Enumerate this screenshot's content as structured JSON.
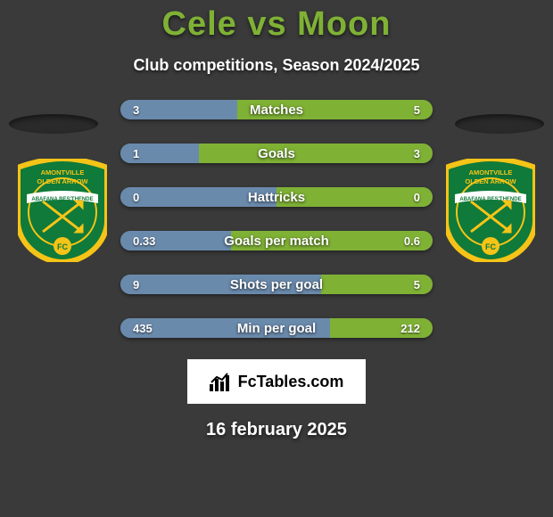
{
  "title": {
    "text": "Cele vs Moon",
    "color": "#7fb135",
    "fontsize": 38
  },
  "subtitle": {
    "text": "Club competitions, Season 2024/2025",
    "fontsize": 18
  },
  "crest": {
    "outer_color": "#f6c417",
    "inner_color": "#0f7a3a",
    "banner_color": "#ffffff",
    "banner_text_color": "#0f7a3a",
    "arrow_color": "#f6c417",
    "top_text": "AMONTVILLE OLDEN ARROW",
    "banner_text": "ABAFANA BES'THENDE",
    "fc_text": "FC"
  },
  "bars": {
    "left_bg": "#4a6a8c",
    "right_bg": "#5a8a4a",
    "left_fill": "#6a8aac",
    "right_fill": "#7fb135",
    "label_fontsize": 15,
    "value_fontsize": 13,
    "rows": [
      {
        "label": "Matches",
        "left": "3",
        "right": "5",
        "left_pct": 37.5,
        "right_pct": 62.5
      },
      {
        "label": "Goals",
        "left": "1",
        "right": "3",
        "left_pct": 25.0,
        "right_pct": 75.0
      },
      {
        "label": "Hattricks",
        "left": "0",
        "right": "0",
        "left_pct": 50.0,
        "right_pct": 50.0
      },
      {
        "label": "Goals per match",
        "left": "0.33",
        "right": "0.6",
        "left_pct": 35.5,
        "right_pct": 64.5
      },
      {
        "label": "Shots per goal",
        "left": "9",
        "right": "5",
        "left_pct": 64.3,
        "right_pct": 35.7
      },
      {
        "label": "Min per goal",
        "left": "435",
        "right": "212",
        "left_pct": 67.2,
        "right_pct": 32.8
      }
    ]
  },
  "brand": {
    "text": "FcTables.com",
    "fontsize": 18
  },
  "date": {
    "text": "16 february 2025",
    "fontsize": 20
  },
  "background_color": "#3a3a3a"
}
